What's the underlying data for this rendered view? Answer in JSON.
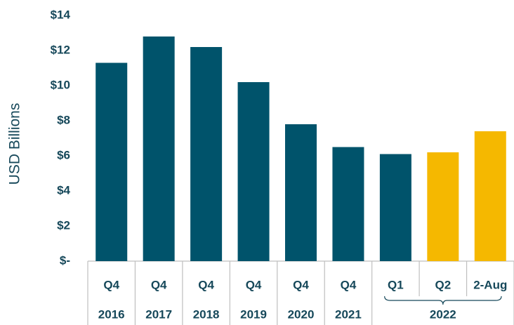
{
  "chart_data": {
    "type": "bar",
    "y_label": "USD Billions",
    "groups": [
      {
        "name": "2016",
        "categories": [
          "Q4"
        ]
      },
      {
        "name": "2017",
        "categories": [
          "Q4"
        ]
      },
      {
        "name": "2018",
        "categories": [
          "Q4"
        ]
      },
      {
        "name": "2019",
        "categories": [
          "Q4"
        ]
      },
      {
        "name": "2020",
        "categories": [
          "Q4"
        ]
      },
      {
        "name": "2021",
        "categories": [
          "Q4"
        ]
      },
      {
        "name": "2022",
        "categories": [
          "Q1",
          "Q2",
          "2-Aug"
        ]
      }
    ],
    "values": [
      11.3,
      12.8,
      12.2,
      10.2,
      7.8,
      6.5,
      6.1,
      6.2,
      7.4
    ],
    "colors": [
      "#00536b",
      "#00536b",
      "#00536b",
      "#00536b",
      "#00536b",
      "#00536b",
      "#00536b",
      "#f5b800",
      "#f5b800"
    ],
    "ylim": [
      0,
      14
    ],
    "yticks": [
      {
        "value": 0,
        "label": "$-"
      },
      {
        "value": 2,
        "label": "$2"
      },
      {
        "value": 4,
        "label": "$4"
      },
      {
        "value": 6,
        "label": "$6"
      },
      {
        "value": 8,
        "label": "$8"
      },
      {
        "value": 10,
        "label": "$10"
      },
      {
        "value": 12,
        "label": "$12"
      },
      {
        "value": 14,
        "label": "$14"
      }
    ],
    "grid": false
  }
}
